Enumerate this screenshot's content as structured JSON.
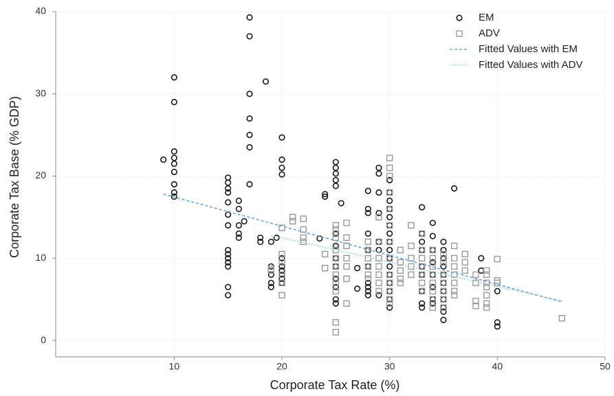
{
  "chart_data": {
    "type": "scatter",
    "x_label": "Corporate Tax Rate (%)",
    "y_label": "Corporate Tax Base (% GDP)",
    "xlim": [
      -1,
      50
    ],
    "ylim": [
      -2,
      40
    ],
    "xticks": [
      10,
      20,
      30,
      40,
      50
    ],
    "yticks": [
      0,
      10,
      20,
      30,
      40
    ],
    "grid": true,
    "legend": "top-right",
    "series": [
      {
        "name": "EM",
        "color": "#1a1a1a",
        "marker": "circle",
        "x": [
          9,
          10,
          10,
          10,
          10,
          10,
          10,
          10,
          10,
          10,
          15,
          15,
          15,
          15,
          15,
          15,
          15,
          15,
          15,
          15,
          15,
          15,
          15,
          15,
          16,
          16,
          16,
          16,
          16,
          16.5,
          17,
          17,
          17,
          17,
          17,
          17,
          17,
          18,
          18,
          18.5,
          19,
          19,
          19,
          19,
          19,
          19.5,
          20,
          20,
          20,
          20,
          20,
          20,
          20,
          20,
          20,
          20,
          23.5,
          24,
          24,
          25,
          25,
          25,
          25,
          25,
          25,
          25,
          25,
          25,
          25,
          25,
          25,
          25,
          25.5,
          27,
          27,
          28,
          28,
          28,
          28,
          28,
          28,
          28,
          28,
          28,
          28,
          29,
          29,
          29,
          29,
          29,
          29,
          29,
          30,
          30,
          30,
          30,
          30,
          30,
          30,
          30,
          30,
          30,
          30,
          30,
          30,
          30,
          30,
          30,
          33,
          33,
          33,
          33,
          33,
          33,
          33,
          33,
          33,
          34,
          34,
          34,
          34,
          34,
          34,
          34,
          34,
          35,
          35,
          35,
          35,
          35,
          35,
          35,
          35,
          35,
          35,
          35,
          36,
          38.5,
          38.5,
          40,
          40,
          40
        ],
        "values": [
          22,
          32,
          29,
          23,
          22.2,
          21.5,
          20.5,
          19,
          18,
          17.5,
          19.8,
          19.2,
          18.5,
          18,
          16.8,
          15.3,
          14,
          11,
          10.5,
          10,
          9.5,
          9,
          6.5,
          5.5,
          17,
          16,
          14,
          13,
          12.5,
          14.5,
          39.3,
          37,
          30,
          27,
          25,
          23.5,
          19,
          12.5,
          12,
          31.5,
          12,
          9,
          8,
          7,
          6.5,
          12.5,
          24.7,
          22,
          21,
          20.2,
          10,
          9,
          8.5,
          8,
          7.5,
          7,
          12.4,
          17.8,
          17.5,
          21.7,
          21,
          20.3,
          19.5,
          18.8,
          13,
          11.5,
          10,
          9,
          7.5,
          6.5,
          5,
          4.5,
          16.7,
          8.8,
          6.3,
          18.2,
          16,
          15.5,
          13,
          11,
          9,
          7,
          6.5,
          6,
          5.5,
          21,
          20.3,
          18,
          15.5,
          12,
          11,
          5.5,
          19.5,
          18,
          17,
          16,
          15,
          14,
          13,
          12,
          11,
          10,
          9,
          8,
          7,
          6,
          5,
          4,
          16.2,
          13,
          12,
          11,
          9,
          8,
          6,
          4.5,
          4,
          14.3,
          12.7,
          11,
          9.5,
          8,
          6.5,
          5,
          4.5,
          12,
          11,
          10,
          9,
          8,
          7,
          6,
          5,
          4,
          3.5,
          2.5,
          18.5,
          10,
          8.5,
          6,
          2.2,
          1.7
        ]
      },
      {
        "name": "ADV",
        "color": "#999999",
        "marker": "square",
        "x": [
          19,
          19,
          20,
          20,
          20,
          20,
          20,
          20,
          21,
          21,
          22,
          22,
          22,
          22,
          24,
          24,
          25,
          25,
          25,
          25,
          25,
          25,
          25,
          25,
          25,
          25,
          25,
          26,
          26,
          26,
          26,
          26,
          26,
          26,
          28,
          28,
          28,
          28,
          28,
          28,
          29,
          29,
          29,
          29,
          29,
          29,
          29,
          30,
          30,
          30,
          30,
          30,
          30,
          30,
          30,
          30,
          30,
          30,
          30,
          30,
          31,
          31,
          31,
          31,
          31,
          32,
          32,
          32,
          32,
          32,
          33,
          33,
          33,
          33,
          33,
          33,
          33,
          34,
          34,
          34,
          34,
          34,
          34,
          34,
          34,
          35,
          35,
          35,
          35,
          35,
          35,
          35,
          36,
          36,
          36,
          36,
          36,
          36,
          36,
          37,
          37,
          37,
          38,
          38,
          38,
          38,
          39,
          39,
          39,
          39,
          39,
          39,
          39,
          40,
          40,
          40,
          46
        ],
        "values": [
          8.5,
          8.7,
          13.7,
          10.5,
          9.5,
          8,
          7,
          5.5,
          15,
          14.5,
          14.8,
          13.5,
          12.5,
          12,
          10.5,
          8.8,
          14,
          13.5,
          12.5,
          11,
          10,
          9,
          8,
          7,
          6,
          2.2,
          1,
          14.3,
          12.5,
          11.5,
          10,
          9,
          7.5,
          4.5,
          12,
          11,
          10,
          9,
          8,
          7.5,
          15,
          12,
          10,
          9,
          8,
          7,
          6,
          22.2,
          21,
          20,
          18,
          16,
          14,
          12,
          10,
          8,
          7,
          6,
          5,
          4.5,
          11,
          9.5,
          8.5,
          7.5,
          7,
          14,
          11.5,
          10,
          9,
          8,
          13,
          11,
          10,
          9,
          8,
          7,
          6,
          11,
          10,
          9,
          8,
          7,
          6,
          5,
          4,
          10.5,
          9.5,
          8,
          7,
          6,
          5,
          4,
          11.5,
          10,
          9,
          8,
          7,
          6,
          5.5,
          10.5,
          9.5,
          8.5,
          8,
          7,
          4.8,
          4.2,
          8.5,
          8,
          7,
          6.5,
          5.5,
          4.5,
          4,
          9.9,
          7.3,
          7,
          2.7
        ]
      },
      {
        "name": "Fitted Values with EM",
        "color": "#5aa9e6",
        "marker": "line",
        "dash": "dashed",
        "x": [
          9,
          46
        ],
        "values": [
          17.8,
          4.7
        ]
      },
      {
        "name": "Fitted Values with ADV",
        "color": "#7cc4d4",
        "marker": "line",
        "dash": "dotted",
        "x": [
          19,
          46
        ],
        "values": [
          12.8,
          4.8
        ]
      }
    ]
  }
}
